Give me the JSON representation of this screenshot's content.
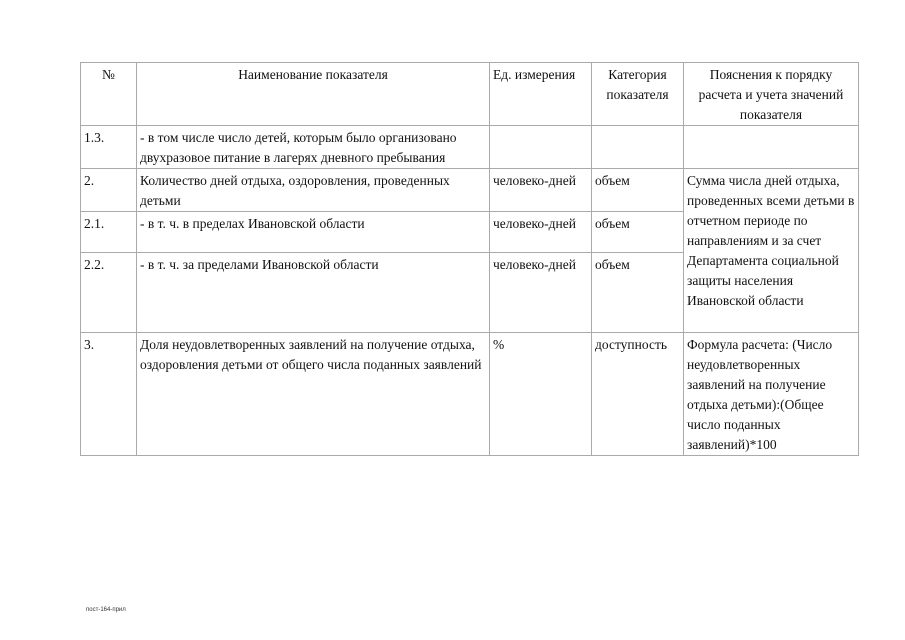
{
  "table": {
    "headers": [
      "№",
      "Наименование показателя",
      "Ед. измерения",
      "Категория показателя",
      "Пояснения к порядку расчета и учета значений показателя"
    ],
    "rows": [
      {
        "num": "1.3.",
        "name": "- в том числе число детей, которым было организовано двухразовое питание в лагерях дневного пребывания",
        "unit": "",
        "category": "",
        "note": ""
      },
      {
        "num": "2.",
        "name": "Количество дней отдыха, оздоровления, проведенных детьми",
        "unit": "человеко-дней",
        "category": "объем",
        "note": "Сумма числа дней отдыха, проведенных всеми детьми в отчетном периоде по направлениям и за счет Департамента социальной защиты населения Ивановской области"
      },
      {
        "num": "2.1.",
        "name": "- в т. ч. в пределах Ивановской области",
        "unit": "человеко-дней",
        "category": "объем"
      },
      {
        "num": "2.2.",
        "name": "- в т. ч. за пределами Ивановской области",
        "unit": "человеко-дней",
        "category": "объем"
      },
      {
        "num": "3.",
        "name": "Доля неудовлетворенных заявлений на получение отдыха, оздоровления детьми от общего числа поданных заявлений",
        "unit": "%",
        "category": "доступность",
        "note": "Формула расчета: (Число неудовлетворенных заявлений на получение отдыха детьми):(Общее число поданных заявлений)*100"
      }
    ]
  },
  "footer": "пост-164-прил"
}
